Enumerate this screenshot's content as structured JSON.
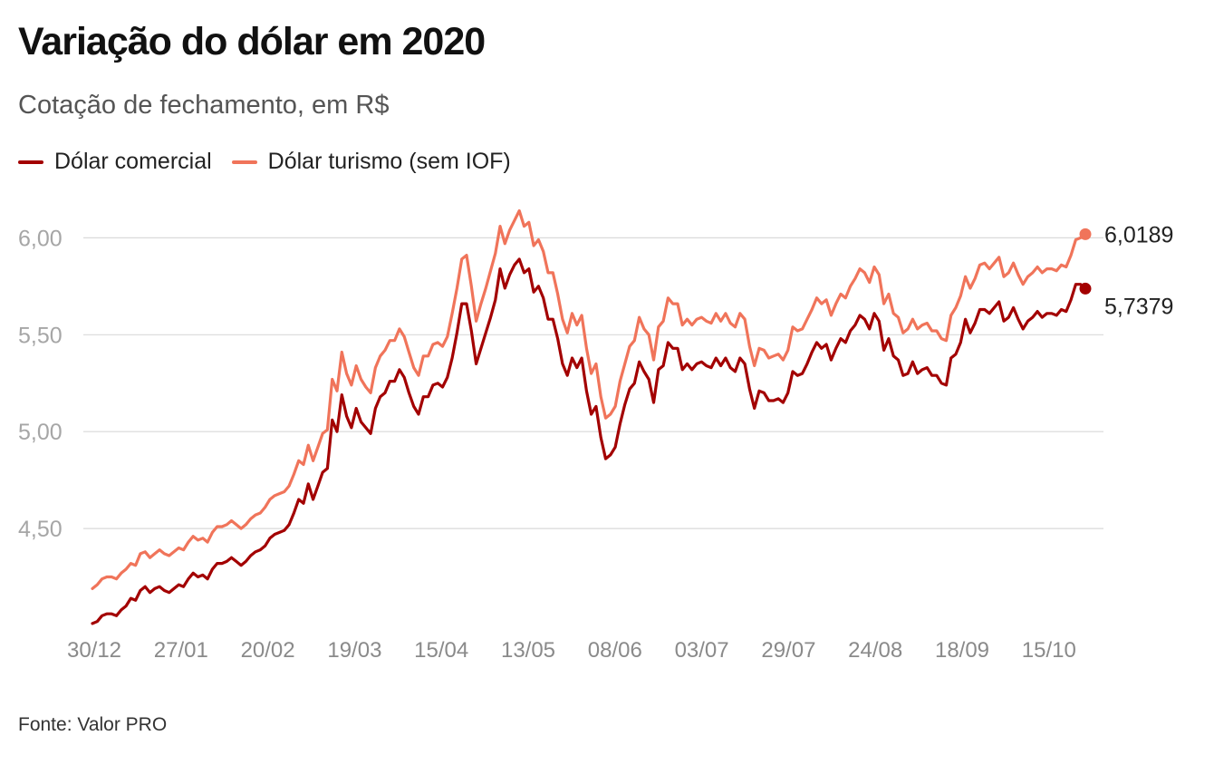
{
  "header": {
    "title": "Variação do dólar em 2020",
    "subtitle": "Cotação de fechamento, em R$"
  },
  "legend": [
    {
      "label": "Dólar comercial",
      "color": "#a30000"
    },
    {
      "label": "Dólar turismo (sem IOF)",
      "color": "#f0745a"
    }
  ],
  "footer": {
    "source": "Fonte: Valor PRO"
  },
  "chart_data": {
    "type": "line",
    "ylim": [
      4.0,
      6.25
    ],
    "yticks": [
      4.5,
      5.0,
      5.5,
      6.0
    ],
    "ytick_labels": [
      "4,50",
      "5,00",
      "5,50",
      "6,00"
    ],
    "x_ticks": [
      "30/12",
      "27/01",
      "20/02",
      "19/03",
      "15/04",
      "13/05",
      "08/06",
      "03/07",
      "29/07",
      "24/08",
      "18/09",
      "15/10"
    ],
    "grid": true,
    "legend_position": "top-left",
    "end_labels": [
      "6,0189",
      "5,7379"
    ],
    "series": [
      {
        "name": "Dólar comercial",
        "color": "#a30000",
        "values": [
          4.01,
          4.02,
          4.05,
          4.06,
          4.06,
          4.05,
          4.08,
          4.1,
          4.14,
          4.13,
          4.18,
          4.2,
          4.17,
          4.19,
          4.2,
          4.18,
          4.17,
          4.19,
          4.21,
          4.2,
          4.24,
          4.27,
          4.25,
          4.26,
          4.24,
          4.29,
          4.32,
          4.32,
          4.33,
          4.35,
          4.33,
          4.31,
          4.33,
          4.36,
          4.38,
          4.39,
          4.41,
          4.45,
          4.47,
          4.48,
          4.49,
          4.52,
          4.58,
          4.65,
          4.63,
          4.73,
          4.65,
          4.72,
          4.79,
          4.81,
          5.06,
          5.0,
          5.19,
          5.08,
          5.02,
          5.12,
          5.05,
          5.02,
          4.99,
          5.12,
          5.18,
          5.2,
          5.26,
          5.26,
          5.32,
          5.28,
          5.2,
          5.13,
          5.09,
          5.18,
          5.18,
          5.24,
          5.25,
          5.23,
          5.28,
          5.38,
          5.51,
          5.66,
          5.66,
          5.52,
          5.35,
          5.43,
          5.51,
          5.59,
          5.68,
          5.84,
          5.74,
          5.81,
          5.86,
          5.89,
          5.82,
          5.84,
          5.72,
          5.75,
          5.69,
          5.58,
          5.58,
          5.48,
          5.35,
          5.29,
          5.38,
          5.33,
          5.38,
          5.21,
          5.09,
          5.13,
          4.97,
          4.86,
          4.88,
          4.92,
          5.04,
          5.14,
          5.22,
          5.25,
          5.36,
          5.31,
          5.27,
          5.15,
          5.32,
          5.34,
          5.46,
          5.43,
          5.43,
          5.32,
          5.35,
          5.32,
          5.35,
          5.36,
          5.34,
          5.33,
          5.38,
          5.34,
          5.38,
          5.33,
          5.31,
          5.38,
          5.35,
          5.22,
          5.12,
          5.21,
          5.2,
          5.16,
          5.16,
          5.17,
          5.15,
          5.2,
          5.31,
          5.29,
          5.3,
          5.35,
          5.41,
          5.46,
          5.43,
          5.45,
          5.37,
          5.43,
          5.48,
          5.46,
          5.52,
          5.55,
          5.6,
          5.58,
          5.53,
          5.61,
          5.57,
          5.42,
          5.48,
          5.39,
          5.37,
          5.29,
          5.3,
          5.36,
          5.3,
          5.32,
          5.33,
          5.29,
          5.29,
          5.25,
          5.24,
          5.38,
          5.4,
          5.46,
          5.58,
          5.51,
          5.56,
          5.63,
          5.63,
          5.61,
          5.64,
          5.67,
          5.57,
          5.59,
          5.64,
          5.58,
          5.53,
          5.57,
          5.59,
          5.62,
          5.59,
          5.61,
          5.61,
          5.6,
          5.63,
          5.62,
          5.68,
          5.76,
          5.76,
          5.7379
        ]
      },
      {
        "name": "Dólar turismo (sem IOF)",
        "color": "#f0745a",
        "values": [
          4.19,
          4.21,
          4.24,
          4.25,
          4.25,
          4.24,
          4.27,
          4.29,
          4.32,
          4.31,
          4.37,
          4.38,
          4.35,
          4.37,
          4.39,
          4.37,
          4.36,
          4.38,
          4.4,
          4.39,
          4.43,
          4.46,
          4.44,
          4.45,
          4.43,
          4.48,
          4.51,
          4.51,
          4.52,
          4.54,
          4.52,
          4.5,
          4.52,
          4.55,
          4.57,
          4.58,
          4.61,
          4.65,
          4.67,
          4.68,
          4.69,
          4.72,
          4.78,
          4.85,
          4.83,
          4.93,
          4.85,
          4.92,
          4.99,
          5.01,
          5.27,
          5.21,
          5.41,
          5.3,
          5.24,
          5.34,
          5.27,
          5.23,
          5.2,
          5.33,
          5.39,
          5.42,
          5.47,
          5.47,
          5.53,
          5.49,
          5.41,
          5.33,
          5.29,
          5.39,
          5.39,
          5.45,
          5.46,
          5.44,
          5.49,
          5.61,
          5.74,
          5.89,
          5.91,
          5.75,
          5.57,
          5.66,
          5.74,
          5.83,
          5.92,
          6.06,
          5.97,
          6.04,
          6.09,
          6.14,
          6.06,
          6.08,
          5.96,
          5.99,
          5.93,
          5.82,
          5.82,
          5.71,
          5.58,
          5.51,
          5.61,
          5.55,
          5.6,
          5.43,
          5.3,
          5.35,
          5.18,
          5.07,
          5.09,
          5.13,
          5.26,
          5.35,
          5.44,
          5.47,
          5.59,
          5.53,
          5.5,
          5.37,
          5.54,
          5.57,
          5.69,
          5.66,
          5.66,
          5.55,
          5.58,
          5.55,
          5.58,
          5.59,
          5.57,
          5.56,
          5.61,
          5.57,
          5.61,
          5.56,
          5.54,
          5.61,
          5.58,
          5.44,
          5.34,
          5.43,
          5.42,
          5.38,
          5.39,
          5.4,
          5.37,
          5.42,
          5.54,
          5.52,
          5.53,
          5.58,
          5.63,
          5.69,
          5.66,
          5.68,
          5.6,
          5.66,
          5.71,
          5.69,
          5.75,
          5.79,
          5.84,
          5.82,
          5.77,
          5.85,
          5.81,
          5.66,
          5.71,
          5.61,
          5.59,
          5.51,
          5.53,
          5.58,
          5.53,
          5.55,
          5.56,
          5.52,
          5.52,
          5.48,
          5.47,
          5.6,
          5.64,
          5.7,
          5.8,
          5.74,
          5.79,
          5.86,
          5.87,
          5.84,
          5.87,
          5.9,
          5.8,
          5.82,
          5.87,
          5.81,
          5.76,
          5.8,
          5.82,
          5.85,
          5.82,
          5.84,
          5.84,
          5.83,
          5.86,
          5.85,
          5.91,
          5.99,
          6.0,
          6.0189
        ]
      }
    ]
  }
}
